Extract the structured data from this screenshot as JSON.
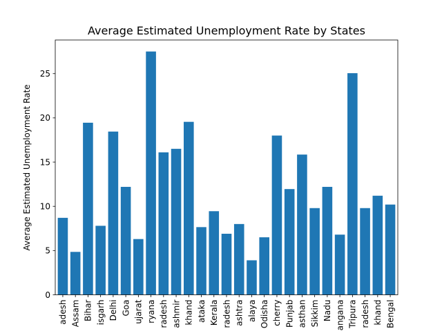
{
  "chart_data": {
    "type": "bar",
    "title": "Average Estimated Unemployment Rate by States",
    "xlabel": "",
    "ylabel": "Average Estimated Unemployment Rate",
    "ylim": [
      0,
      28.8
    ],
    "yticks": [
      0,
      5,
      10,
      15,
      20,
      25
    ],
    "grid": false,
    "bar_color": "#1f77b4",
    "categories": [
      "adesh",
      "Assam",
      "Bihar",
      "isgarh",
      "Delhi",
      "Goa",
      "ujarat",
      "ryana",
      "radesh",
      "ashmir",
      "khand",
      "ataka",
      "Kerala",
      "radesh",
      "ashtra",
      "alaya",
      "Odisha",
      "cherry",
      "Punjab",
      "asthan",
      "Sikkim",
      "Nadu",
      "angana",
      "Tripura",
      "radesh",
      "khand",
      "Bengal"
    ],
    "values": [
      8.7,
      4.85,
      19.45,
      7.8,
      18.45,
      12.2,
      6.3,
      27.5,
      16.1,
      16.5,
      19.55,
      7.65,
      9.45,
      6.9,
      8.0,
      3.9,
      6.5,
      18.0,
      11.95,
      15.85,
      9.8,
      12.2,
      6.8,
      25.05,
      9.8,
      11.2,
      10.2
    ]
  }
}
